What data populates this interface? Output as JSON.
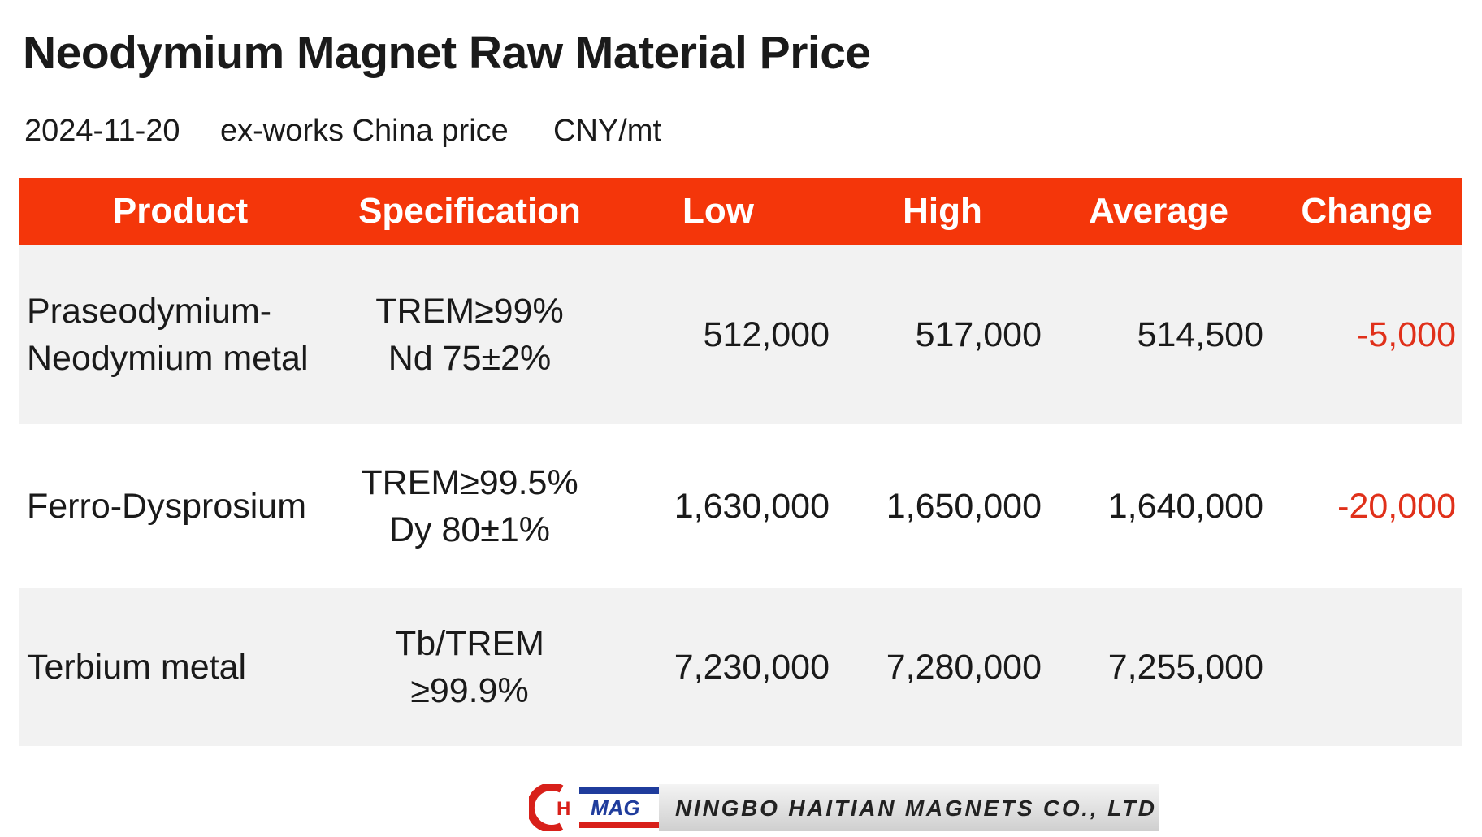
{
  "header": {
    "title": "Neodymium Magnet Raw Material Price",
    "date": "2024-11-20",
    "basis": "ex-works China price",
    "unit": "CNY/mt"
  },
  "table": {
    "columns": [
      "Product",
      "Specification",
      "Low",
      "High",
      "Average",
      "Change"
    ],
    "rows": [
      [
        [
          "Praseodymium-",
          "Neodymium metal"
        ],
        [
          "TREM≥99%",
          "Nd 75±2%"
        ],
        "512,000",
        "517,000",
        "514,500",
        "-5,000"
      ],
      [
        [
          "Ferro-Dysprosium"
        ],
        [
          "TREM≥99.5%",
          "Dy 80±1%"
        ],
        "1,630,000",
        "1,650,000",
        "1,640,000",
        "-20,000"
      ],
      [
        [
          "Terbium metal"
        ],
        [
          "Tb/TREM",
          "≥99.9%"
        ],
        "7,230,000",
        "7,280,000",
        "7,255,000",
        null
      ]
    ]
  },
  "logo": {
    "letters": [
      "H",
      "MAG"
    ],
    "company": "NINGBO HAITIAN MAGNETS CO., LTD"
  }
}
